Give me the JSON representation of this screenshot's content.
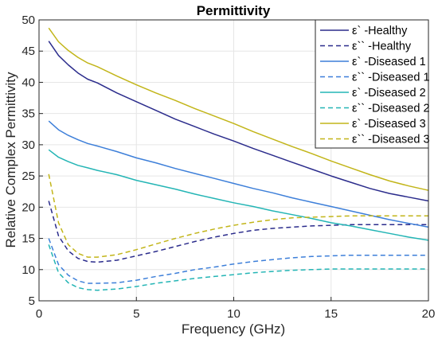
{
  "chart_data": {
    "type": "line",
    "title": "Permittivity",
    "xlabel": "Frequency (GHz)",
    "ylabel": "Relative Complex Permittivity",
    "xlim": [
      0,
      20
    ],
    "ylim": [
      5,
      50
    ],
    "xticks": [
      0,
      5,
      10,
      15,
      20
    ],
    "yticks": [
      5,
      10,
      15,
      20,
      25,
      30,
      35,
      40,
      45,
      50
    ],
    "grid": true,
    "legend_position": "top-right",
    "x": [
      0.5,
      1,
      1.5,
      2,
      2.5,
      3,
      4,
      5,
      6,
      7,
      8,
      9,
      10,
      11,
      12,
      13,
      14,
      15,
      16,
      17,
      18,
      19,
      20
    ],
    "series": [
      {
        "name": "ε` -Healthy",
        "color": "#2b2c8c",
        "dash": "solid",
        "values": [
          46.6,
          44.3,
          42.8,
          41.5,
          40.5,
          39.9,
          38.3,
          36.9,
          35.5,
          34.1,
          32.9,
          31.7,
          30.6,
          29.4,
          28.3,
          27.2,
          26.1,
          25.0,
          24.0,
          23.0,
          22.2,
          21.6,
          21.0
        ]
      },
      {
        "name": "ε`` -Healthy",
        "color": "#2b2c8c",
        "dash": "dashed",
        "values": [
          21.0,
          15.4,
          13.0,
          11.8,
          11.3,
          11.2,
          11.5,
          12.2,
          12.9,
          13.7,
          14.5,
          15.2,
          15.8,
          16.3,
          16.6,
          16.8,
          17.0,
          17.1,
          17.2,
          17.2,
          17.2,
          17.2,
          17.2
        ]
      },
      {
        "name": "ε` -Diseased 1",
        "color": "#3d7fd9",
        "dash": "solid",
        "values": [
          33.8,
          32.4,
          31.5,
          30.8,
          30.2,
          29.8,
          28.9,
          27.9,
          27.1,
          26.2,
          25.4,
          24.6,
          23.8,
          23.0,
          22.3,
          21.5,
          20.8,
          20.1,
          19.4,
          18.7,
          18.0,
          17.4,
          16.8
        ]
      },
      {
        "name": "ε`` -Diseased 1",
        "color": "#3d7fd9",
        "dash": "dashed",
        "values": [
          15.0,
          10.8,
          9.1,
          8.2,
          7.8,
          7.8,
          7.9,
          8.3,
          8.9,
          9.4,
          10.0,
          10.4,
          10.9,
          11.3,
          11.6,
          11.9,
          12.1,
          12.2,
          12.3,
          12.3,
          12.3,
          12.3,
          12.3
        ]
      },
      {
        "name": "ε` -Diseased 2",
        "color": "#24b5b5",
        "dash": "solid",
        "values": [
          29.2,
          28.0,
          27.3,
          26.7,
          26.3,
          25.9,
          25.2,
          24.3,
          23.6,
          22.9,
          22.1,
          21.4,
          20.7,
          20.1,
          19.4,
          18.8,
          18.2,
          17.5,
          17.0,
          16.4,
          15.8,
          15.2,
          14.7
        ]
      },
      {
        "name": "ε`` -Diseased 2",
        "color": "#24b5b5",
        "dash": "dashed",
        "values": [
          14.0,
          9.5,
          7.9,
          7.1,
          6.8,
          6.7,
          6.9,
          7.3,
          7.8,
          8.2,
          8.6,
          8.9,
          9.2,
          9.5,
          9.7,
          9.9,
          10.0,
          10.1,
          10.1,
          10.1,
          10.1,
          10.1,
          10.1
        ]
      },
      {
        "name": "ε` -Diseased 3",
        "color": "#c2b519",
        "dash": "solid",
        "values": [
          48.7,
          46.5,
          45.1,
          44.0,
          43.1,
          42.5,
          41.0,
          39.6,
          38.3,
          37.1,
          35.8,
          34.6,
          33.4,
          32.1,
          30.9,
          29.7,
          28.6,
          27.4,
          26.3,
          25.2,
          24.2,
          23.4,
          22.7
        ]
      },
      {
        "name": "ε`` -Diseased 3",
        "color": "#c2b519",
        "dash": "dashed",
        "values": [
          25.3,
          17.5,
          14.0,
          12.6,
          12.0,
          12.0,
          12.4,
          13.2,
          14.1,
          15.0,
          15.8,
          16.5,
          17.1,
          17.6,
          18.0,
          18.3,
          18.4,
          18.5,
          18.6,
          18.6,
          18.6,
          18.6,
          18.6
        ]
      }
    ]
  }
}
